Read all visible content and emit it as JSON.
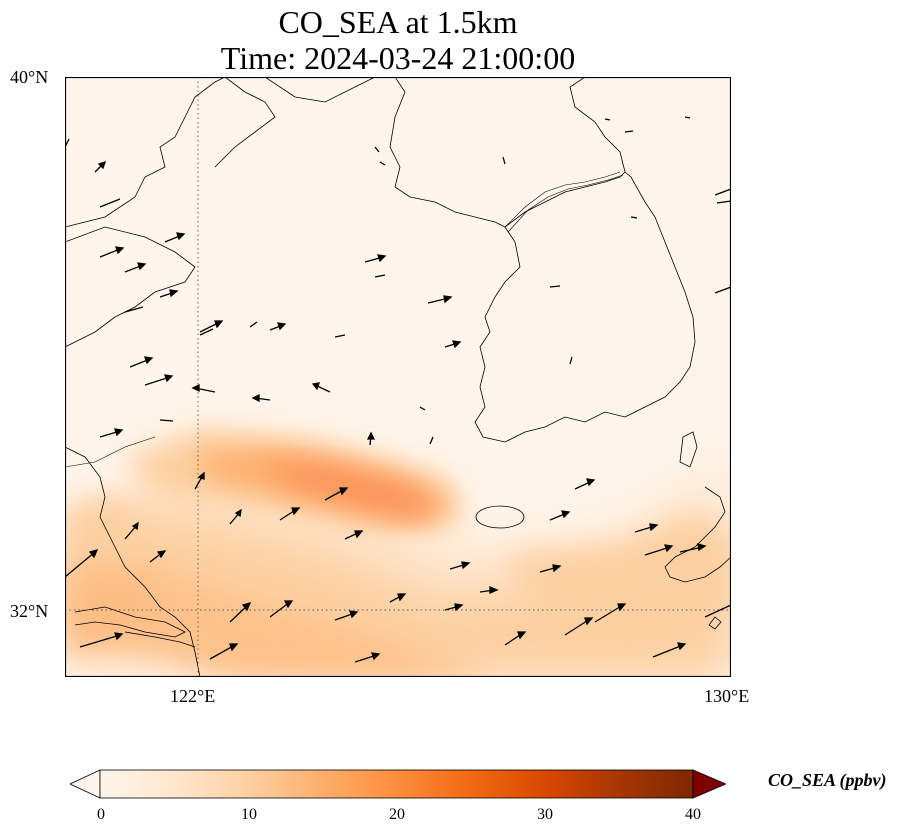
{
  "title": {
    "line1": "CO_SEA at 1.5km",
    "line2": "Time: 2024-03-24 21:00:00"
  },
  "map": {
    "extent": {
      "lon_min": 120,
      "lon_max": 130,
      "lat_min": 31,
      "lat_max": 40
    },
    "gridlines": {
      "lons": [
        122
      ],
      "lats": [
        32
      ],
      "style": "dotted"
    },
    "lat_labels": [
      "40°N",
      "32°N"
    ],
    "lon_labels": [
      "122°E",
      "130°E"
    ]
  },
  "colorbar": {
    "label": "CO_SEA (ppbv)",
    "ticks": [
      "0",
      "10",
      "20",
      "30",
      "40"
    ],
    "range": [
      0,
      40
    ],
    "colormap": "Oranges",
    "extend": "both"
  },
  "colors": {
    "background_low": "#fff5eb",
    "mid": "#fdae6b",
    "high": "#f16913",
    "max": "#7f0000"
  }
}
